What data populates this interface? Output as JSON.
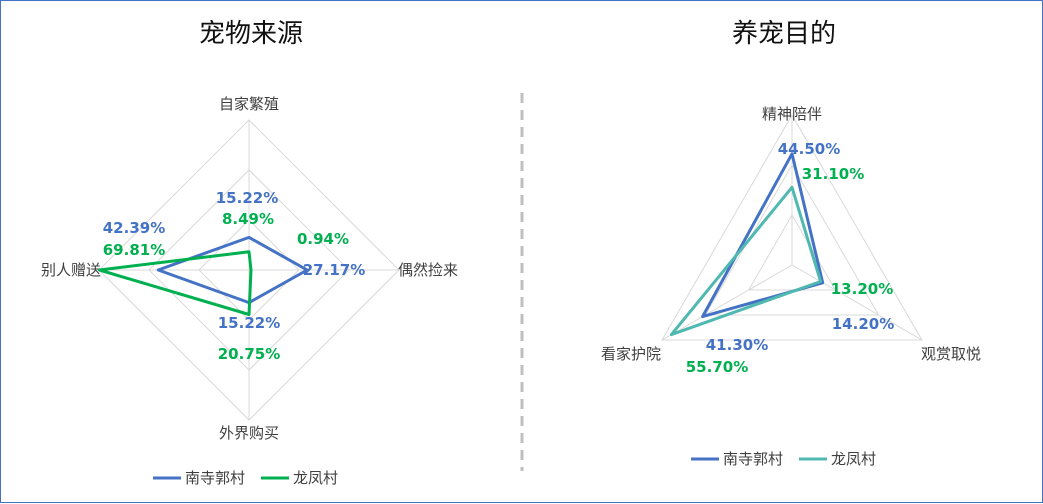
{
  "chart_data": [
    {
      "type": "radar",
      "title": "宠物来源",
      "axes": [
        "自家繁殖",
        "偶然捡来",
        "外界购买",
        "别人赠送"
      ],
      "scale_max": 70,
      "series": [
        {
          "name": "南寺郭村",
          "color": "#4472c4",
          "values": [
            15.22,
            27.17,
            15.22,
            42.39
          ],
          "labels": [
            "15.22%",
            "27.17%",
            "15.22%",
            "42.39%"
          ]
        },
        {
          "name": "龙凤村",
          "color": "#00b050",
          "values": [
            8.49,
            0.94,
            20.75,
            69.81
          ],
          "labels": [
            "8.49%",
            "0.94%",
            "20.75%",
            "69.81%"
          ]
        }
      ],
      "grid_rings": 3,
      "legend_position": "bottom"
    },
    {
      "type": "radar",
      "title": "养宠目的",
      "axes": [
        "精神陪伴",
        "观赏取悦",
        "看家护院"
      ],
      "scale_max": 60,
      "series": [
        {
          "name": "南寺郭村",
          "color": "#4472c4",
          "values": [
            44.5,
            14.2,
            41.3
          ],
          "labels": [
            "44.50%",
            "14.20%",
            "41.30%"
          ]
        },
        {
          "name": "龙凤村",
          "color": "#4fb8b0",
          "values": [
            31.1,
            13.2,
            55.7
          ],
          "labels": [
            "31.10%",
            "13.20%",
            "55.70%"
          ]
        }
      ],
      "grid_rings": 3,
      "legend_position": "bottom"
    }
  ]
}
